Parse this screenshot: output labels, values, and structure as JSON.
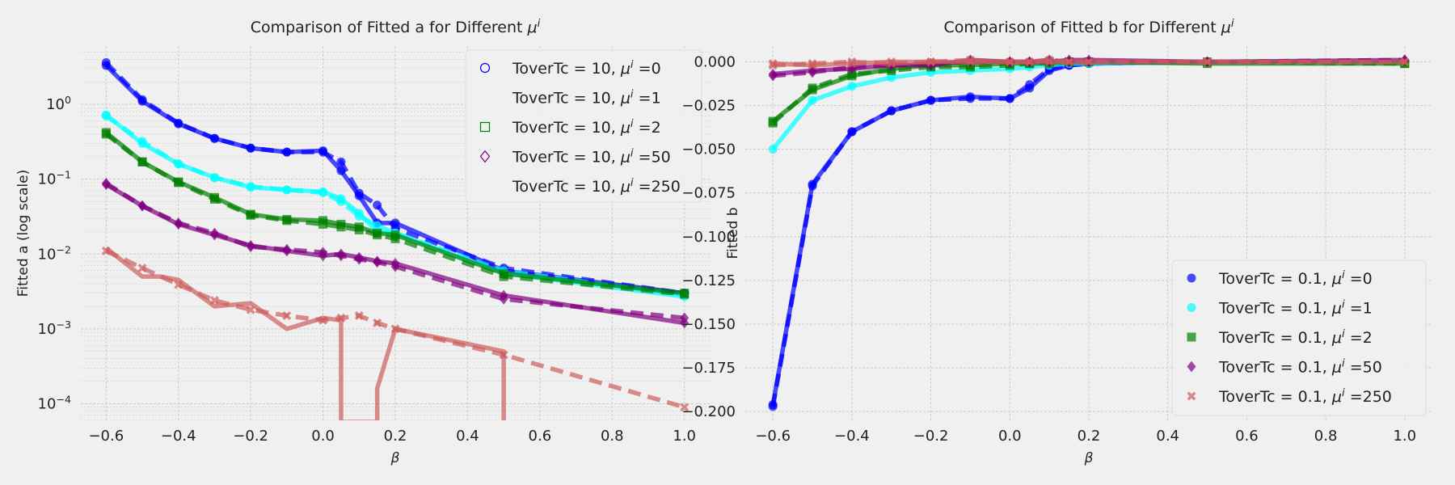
{
  "colors": {
    "background": "#f0f0f0",
    "plot_background": "#f0f0f0",
    "grid": "#cbcbcb",
    "blue": "#0000ff",
    "cyan": "#00ffff",
    "green": "#008000",
    "purple": "#800080",
    "rose": "#cd5c5c"
  },
  "chart_data": [
    {
      "type": "line",
      "title_prefix": "Comparison of Fitted a for Different ",
      "title_sym": "μ",
      "title_sup": "i",
      "xlabel": "β",
      "ylabel": "Fitted a (log scale)",
      "yscale": "log",
      "xlim": [
        -0.67,
        1.07
      ],
      "ylim": [
        6e-05,
        6
      ],
      "xticks": [
        -0.6,
        -0.4,
        -0.2,
        0.0,
        0.2,
        0.4,
        0.6,
        0.8,
        1.0
      ],
      "xtick_labels": [
        "−0.6",
        "−0.4",
        "−0.2",
        "0.0",
        "0.2",
        "0.4",
        "0.6",
        "0.8",
        "1.0"
      ],
      "yticks": [
        0.0001,
        0.001,
        0.01,
        0.1,
        1
      ],
      "ytick_labels": [
        [
          "10",
          "−4"
        ],
        [
          "10",
          "−3"
        ],
        [
          "10",
          "−2"
        ],
        [
          "10",
          "−1"
        ],
        [
          "10",
          "0"
        ]
      ],
      "grid": true,
      "legend_position": "top-right",
      "legend": [
        {
          "prefix": "ToverTc = 10, ",
          "sym": "μ",
          "sup": "i",
          "suffix": " =0",
          "marker": "o",
          "color": "#0000ff"
        },
        {
          "prefix": "ToverTc = 10, ",
          "sym": "μ",
          "sup": "i",
          "suffix": " =1",
          "marker": "none",
          "color": "#00ffff"
        },
        {
          "prefix": "ToverTc = 10, ",
          "sym": "μ",
          "sup": "i",
          "suffix": " =2",
          "marker": "s",
          "color": "#008000"
        },
        {
          "prefix": "ToverTc = 10, ",
          "sym": "μ",
          "sup": "i",
          "suffix": " =50",
          "marker": "D",
          "color": "#800080"
        },
        {
          "prefix": "ToverTc = 10, ",
          "sym": "μ",
          "sup": "i",
          "suffix": " =250",
          "marker": "none",
          "color": "#cd5c5c"
        }
      ],
      "x": [
        -0.6,
        -0.5,
        -0.4,
        -0.3,
        -0.2,
        -0.1,
        0.0,
        0.05,
        0.1,
        0.15,
        0.2,
        0.5,
        1.0
      ],
      "series": [
        {
          "color": "#0000ff",
          "marker": "o",
          "style": "solid",
          "values": [
            3.3,
            1.1,
            0.55,
            0.35,
            0.26,
            0.23,
            0.24,
            0.13,
            0.06,
            0.026,
            0.026,
            0.006,
            0.003
          ]
        },
        {
          "color": "#0000ff",
          "marker": "o",
          "style": "dashed",
          "values": [
            3.6,
            1.15,
            0.56,
            0.35,
            0.26,
            0.23,
            0.23,
            0.17,
            0.065,
            0.045,
            0.022,
            0.0065,
            0.003
          ]
        },
        {
          "color": "#00ffff",
          "marker": "o",
          "style": "solid",
          "values": [
            0.72,
            0.3,
            0.16,
            0.105,
            0.078,
            0.072,
            0.068,
            0.055,
            0.035,
            0.02,
            0.019,
            0.0055,
            0.0027
          ]
        },
        {
          "color": "#00ffff",
          "marker": "o",
          "style": "dashed",
          "values": [
            0.7,
            0.32,
            0.16,
            0.105,
            0.08,
            0.072,
            0.066,
            0.05,
            0.032,
            0.024,
            0.019,
            0.006,
            0.0028
          ]
        },
        {
          "color": "#008000",
          "marker": "s",
          "style": "solid",
          "values": [
            0.42,
            0.17,
            0.092,
            0.057,
            0.034,
            0.029,
            0.028,
            0.025,
            0.023,
            0.019,
            0.018,
            0.0055,
            0.003
          ]
        },
        {
          "color": "#008000",
          "marker": "s",
          "style": "dashed",
          "values": [
            0.4,
            0.17,
            0.09,
            0.054,
            0.033,
            0.028,
            0.025,
            0.023,
            0.021,
            0.018,
            0.016,
            0.005,
            0.0029
          ]
        },
        {
          "color": "#800080",
          "marker": "D",
          "style": "solid",
          "values": [
            0.085,
            0.044,
            0.025,
            0.018,
            0.013,
            0.011,
            0.0095,
            0.01,
            0.009,
            0.008,
            0.0075,
            0.0028,
            0.0012
          ]
        },
        {
          "color": "#800080",
          "marker": "D",
          "style": "dashed",
          "values": [
            0.088,
            0.044,
            0.026,
            0.019,
            0.0125,
            0.0115,
            0.0105,
            0.0095,
            0.0085,
            0.0078,
            0.0068,
            0.0025,
            0.0014
          ]
        },
        {
          "color": "#cd5c5c",
          "marker": "none",
          "style": "solid",
          "x": [
            -0.6,
            -0.5,
            -0.45,
            -0.4,
            -0.3,
            -0.2,
            -0.1,
            0.0,
            0.05,
            0.05,
            0.15,
            0.15,
            0.2,
            0.5,
            0.5
          ],
          "values": [
            0.012,
            0.005,
            0.005,
            0.0045,
            0.002,
            0.0022,
            0.001,
            0.0014,
            0.0013,
            1e-05,
            1e-05,
            0.00016,
            0.001,
            0.0005,
            1e-05
          ]
        },
        {
          "color": "#cd5c5c",
          "marker": "X",
          "style": "dashed",
          "values": [
            0.011,
            0.0065,
            0.0039,
            0.0024,
            0.0018,
            0.0015,
            0.0013,
            0.0014,
            0.0015,
            0.0012,
            0.001,
            0.00045,
            9e-05
          ]
        }
      ]
    },
    {
      "type": "line",
      "title_prefix": "Comparison of Fitted b for Different ",
      "title_sym": "μ",
      "title_sup": "i",
      "xlabel": "β",
      "ylabel": "Fitted b",
      "yscale": "linear",
      "xlim": [
        -0.67,
        1.07
      ],
      "ylim": [
        -0.205,
        0.009
      ],
      "xticks": [
        -0.6,
        -0.4,
        -0.2,
        0.0,
        0.2,
        0.4,
        0.6,
        0.8,
        1.0
      ],
      "xtick_labels": [
        "−0.6",
        "−0.4",
        "−0.2",
        "0.0",
        "0.2",
        "0.4",
        "0.6",
        "0.8",
        "1.0"
      ],
      "yticks": [
        0.0,
        -0.025,
        -0.05,
        -0.075,
        -0.1,
        -0.125,
        -0.15,
        -0.175,
        -0.2
      ],
      "ytick_labels": [
        "0.000",
        "−0.025",
        "−0.050",
        "−0.075",
        "−0.100",
        "−0.125",
        "−0.150",
        "−0.175",
        "−0.200"
      ],
      "grid": true,
      "legend_position": "bottom-right",
      "legend": [
        {
          "prefix": "ToverTc = 0.1, ",
          "sym": "μ",
          "sup": "i",
          "suffix": " =0",
          "marker": "o",
          "color": "#0000ff"
        },
        {
          "prefix": "ToverTc = 0.1, ",
          "sym": "μ",
          "sup": "i",
          "suffix": " =1",
          "marker": "o",
          "color": "#00ffff"
        },
        {
          "prefix": "ToverTc = 0.1, ",
          "sym": "μ",
          "sup": "i",
          "suffix": " =2",
          "marker": "s",
          "color": "#008000"
        },
        {
          "prefix": "ToverTc = 0.1, ",
          "sym": "μ",
          "sup": "i",
          "suffix": " =50",
          "marker": "D",
          "color": "#800080"
        },
        {
          "prefix": "ToverTc = 0.1, ",
          "sym": "μ",
          "sup": "i",
          "suffix": " =250",
          "marker": "X",
          "color": "#cd5c5c"
        }
      ],
      "x": [
        -0.6,
        -0.5,
        -0.4,
        -0.3,
        -0.2,
        -0.1,
        0.0,
        0.05,
        0.1,
        0.15,
        0.2,
        0.5,
        1.0
      ],
      "series": [
        {
          "color": "#0000ff",
          "marker": "o",
          "style": "solid",
          "values": [
            -0.196,
            -0.07,
            -0.04,
            -0.028,
            -0.022,
            -0.02,
            -0.021,
            -0.015,
            -0.005,
            -0.002,
            -0.001,
            0.0,
            0.0
          ]
        },
        {
          "color": "#0000ff",
          "marker": "o",
          "style": "dashed",
          "values": [
            -0.197,
            -0.071,
            -0.04,
            -0.028,
            -0.022,
            -0.021,
            -0.021,
            -0.013,
            -0.004,
            -0.002,
            -0.001,
            0.0,
            0.0
          ]
        },
        {
          "color": "#00ffff",
          "marker": "o",
          "style": "solid",
          "values": [
            -0.05,
            -0.022,
            -0.014,
            -0.009,
            -0.006,
            -0.005,
            -0.004,
            -0.003,
            -0.002,
            -0.001,
            -0.001,
            0.0,
            0.0
          ]
        },
        {
          "color": "#008000",
          "marker": "s",
          "style": "solid",
          "values": [
            -0.034,
            -0.016,
            -0.008,
            -0.004,
            -0.002,
            -0.002,
            -0.001,
            -0.001,
            -0.001,
            0.0,
            0.0,
            -0.001,
            -0.001
          ]
        },
        {
          "color": "#008000",
          "marker": "s",
          "style": "dashed",
          "values": [
            -0.035,
            -0.015,
            -0.007,
            -0.005,
            -0.003,
            -0.003,
            -0.002,
            -0.001,
            0.0,
            0.0,
            0.0,
            0.0,
            -0.001
          ]
        },
        {
          "color": "#800080",
          "marker": "D",
          "style": "solid",
          "values": [
            -0.007,
            -0.005,
            -0.004,
            -0.002,
            -0.002,
            0.001,
            0.0,
            0.0,
            0.0,
            0.001,
            0.001,
            0.0,
            0.001
          ]
        },
        {
          "color": "#800080",
          "marker": "D",
          "style": "dashed",
          "values": [
            -0.008,
            -0.006,
            -0.003,
            -0.002,
            -0.001,
            0.0,
            0.0,
            0.0,
            0.001,
            0.0,
            0.0,
            0.0,
            0.001
          ]
        },
        {
          "color": "#cd5c5c",
          "marker": "X",
          "style": "solid",
          "values": [
            -0.001,
            -0.002,
            -0.001,
            0.0,
            0.0,
            0.0,
            0.0,
            0.0,
            0.0,
            0.0,
            0.0,
            0.0,
            0.0
          ]
        },
        {
          "color": "#cd5c5c",
          "marker": "X",
          "style": "dashed",
          "values": [
            -0.002,
            -0.001,
            0.0,
            -0.001,
            0.0,
            0.001,
            0.0,
            0.0,
            0.001,
            0.0,
            0.0,
            0.0,
            0.0
          ]
        }
      ]
    }
  ]
}
